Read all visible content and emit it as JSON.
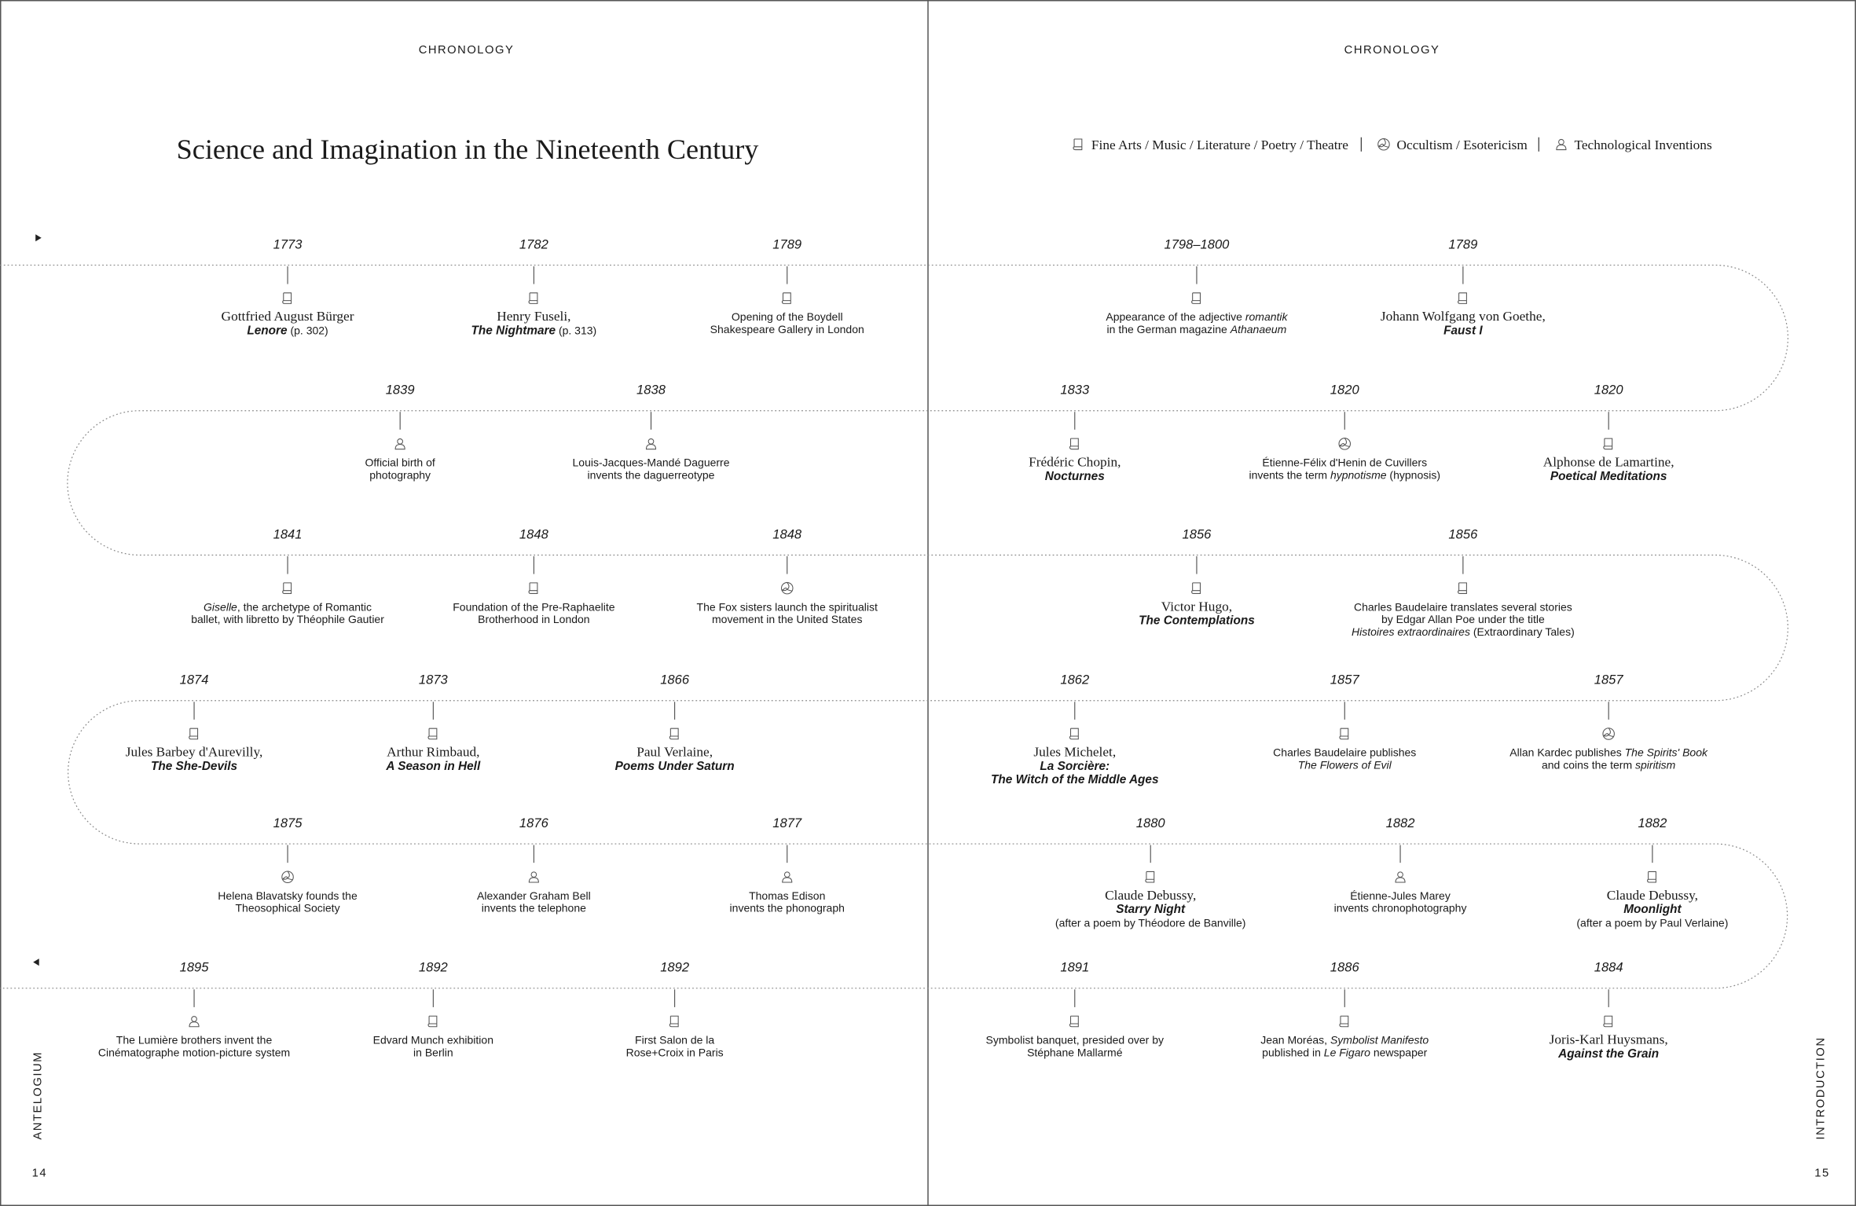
{
  "header": {
    "left": "CHRONOLOGY",
    "right": "CHRONOLOGY",
    "title": "Science and Imagination in the Nineteenth Century"
  },
  "legend": [
    {
      "icon": "arts",
      "label": "Fine Arts / Music / Literature / Poetry / Theatre"
    },
    {
      "icon": "occult",
      "label": "Occultism / Esotericism"
    },
    {
      "icon": "tech",
      "label": "Technological Inventions"
    }
  ],
  "footer": {
    "left_section": "ANTELOGIUM",
    "right_section": "INTRODUCTION",
    "left_page": "14",
    "right_page": "15"
  },
  "events": [
    {
      "year": "1773",
      "icon": "arts",
      "lines": [
        [
          {
            "text": "Gottfried August Bürger",
            "font": "serif"
          }
        ],
        [
          {
            "text": "Lenore",
            "font": "title"
          },
          {
            "text": " (p. 302)",
            "font": "sans"
          }
        ]
      ]
    },
    {
      "year": "1782",
      "icon": "arts",
      "lines": [
        [
          {
            "text": "Henry Fuseli,",
            "font": "serif"
          }
        ],
        [
          {
            "text": "The Nightmare",
            "font": "title"
          },
          {
            "text": " (p. 313)",
            "font": "sans"
          }
        ]
      ]
    },
    {
      "year": "1789",
      "icon": "arts",
      "lines": [
        [
          {
            "text": "Opening of the Boydell",
            "font": "sans"
          }
        ],
        [
          {
            "text": "Shakespeare Gallery in London",
            "font": "sans"
          }
        ]
      ]
    },
    {
      "year": "1798–1800",
      "icon": "arts",
      "lines": [
        [
          {
            "text": "Appearance of the adjective ",
            "font": "sans"
          },
          {
            "text": "romantik",
            "font": "italic"
          }
        ],
        [
          {
            "text": "in the German magazine ",
            "font": "sans"
          },
          {
            "text": "Athanaeum",
            "font": "italic"
          }
        ]
      ]
    },
    {
      "year": "1789",
      "icon": "arts",
      "lines": [
        [
          {
            "text": "Johann Wolfgang von Goethe,",
            "font": "serif"
          }
        ],
        [
          {
            "text": "Faust I",
            "font": "title"
          }
        ]
      ]
    },
    {
      "year": "1839",
      "icon": "tech",
      "lines": [
        [
          {
            "text": "Official birth of",
            "font": "sans"
          }
        ],
        [
          {
            "text": "photography",
            "font": "sans"
          }
        ]
      ]
    },
    {
      "year": "1838",
      "icon": "tech",
      "lines": [
        [
          {
            "text": "Louis-Jacques-Mandé Daguerre",
            "font": "sans"
          }
        ],
        [
          {
            "text": "invents the daguerreotype",
            "font": "sans"
          }
        ]
      ]
    },
    {
      "year": "1833",
      "icon": "arts",
      "lines": [
        [
          {
            "text": "Frédéric Chopin,",
            "font": "serif"
          }
        ],
        [
          {
            "text": "Nocturnes",
            "font": "title"
          }
        ]
      ]
    },
    {
      "year": "1820",
      "icon": "occult",
      "lines": [
        [
          {
            "text": "Étienne-Félix d'Henin de Cuvillers",
            "font": "sans"
          }
        ],
        [
          {
            "text": "invents the term ",
            "font": "sans"
          },
          {
            "text": "hypnotisme",
            "font": "italic"
          },
          {
            "text": " (hypnosis)",
            "font": "sans"
          }
        ]
      ]
    },
    {
      "year": "1820",
      "icon": "arts",
      "lines": [
        [
          {
            "text": "Alphonse de Lamartine,",
            "font": "serif"
          }
        ],
        [
          {
            "text": "Poetical Meditations",
            "font": "title"
          }
        ]
      ]
    },
    {
      "year": "1841",
      "icon": "arts",
      "lines": [
        [
          {
            "text": "Giselle",
            "font": "italic"
          },
          {
            "text": ", the archetype of Romantic",
            "font": "sans"
          }
        ],
        [
          {
            "text": "ballet, with libretto by Théophile Gautier",
            "font": "sans"
          }
        ]
      ]
    },
    {
      "year": "1848",
      "icon": "arts",
      "lines": [
        [
          {
            "text": "Foundation of the Pre-Raphaelite",
            "font": "sans"
          }
        ],
        [
          {
            "text": "Brotherhood in London",
            "font": "sans"
          }
        ]
      ]
    },
    {
      "year": "1848",
      "icon": "occult",
      "lines": [
        [
          {
            "text": "The Fox sisters launch the spiritualist",
            "font": "sans"
          }
        ],
        [
          {
            "text": "movement in the United States",
            "font": "sans"
          }
        ]
      ]
    },
    {
      "year": "1856",
      "icon": "arts",
      "lines": [
        [
          {
            "text": "Victor Hugo,",
            "font": "serif"
          }
        ],
        [
          {
            "text": "The Contemplations",
            "font": "title"
          }
        ]
      ]
    },
    {
      "year": "1856",
      "icon": "arts",
      "lines": [
        [
          {
            "text": "Charles Baudelaire translates several stories",
            "font": "sans"
          }
        ],
        [
          {
            "text": "by Edgar Allan Poe under the title",
            "font": "sans"
          }
        ],
        [
          {
            "text": "Histoires extraordinaires",
            "font": "italic"
          },
          {
            "text": " (Extraordinary Tales)",
            "font": "sans"
          }
        ]
      ]
    },
    {
      "year": "1874",
      "icon": "arts",
      "lines": [
        [
          {
            "text": "Jules Barbey d'Aurevilly,",
            "font": "serif"
          }
        ],
        [
          {
            "text": "The She-Devils",
            "font": "title"
          }
        ]
      ]
    },
    {
      "year": "1873",
      "icon": "arts",
      "lines": [
        [
          {
            "text": "Arthur Rimbaud,",
            "font": "serif"
          }
        ],
        [
          {
            "text": "A Season in Hell",
            "font": "title"
          }
        ]
      ]
    },
    {
      "year": "1866",
      "icon": "arts",
      "lines": [
        [
          {
            "text": "Paul Verlaine,",
            "font": "serif"
          }
        ],
        [
          {
            "text": "Poems Under Saturn",
            "font": "title"
          }
        ]
      ]
    },
    {
      "year": "1862",
      "icon": "arts",
      "lines": [
        [
          {
            "text": "Jules Michelet,",
            "font": "serif"
          }
        ],
        [
          {
            "text": "La Sorcière:",
            "font": "title"
          }
        ],
        [
          {
            "text": "The Witch of the Middle Ages",
            "font": "title"
          }
        ]
      ]
    },
    {
      "year": "1857",
      "icon": "arts",
      "lines": [
        [
          {
            "text": "Charles Baudelaire publishes",
            "font": "sans"
          }
        ],
        [
          {
            "text": "The Flowers of Evil",
            "font": "italic"
          }
        ]
      ]
    },
    {
      "year": "1857",
      "icon": "occult",
      "lines": [
        [
          {
            "text": "Allan Kardec publishes ",
            "font": "sans"
          },
          {
            "text": "The Spirits' Book",
            "font": "italic"
          }
        ],
        [
          {
            "text": "and coins the term ",
            "font": "sans"
          },
          {
            "text": "spiritism",
            "font": "italic"
          }
        ]
      ]
    },
    {
      "year": "1875",
      "icon": "occult",
      "lines": [
        [
          {
            "text": "Helena Blavatsky founds the",
            "font": "sans"
          }
        ],
        [
          {
            "text": "Theosophical Society",
            "font": "sans"
          }
        ]
      ]
    },
    {
      "year": "1876",
      "icon": "tech",
      "lines": [
        [
          {
            "text": "Alexander Graham Bell",
            "font": "sans"
          }
        ],
        [
          {
            "text": "invents the telephone",
            "font": "sans"
          }
        ]
      ]
    },
    {
      "year": "1877",
      "icon": "tech",
      "lines": [
        [
          {
            "text": "Thomas Edison",
            "font": "sans"
          }
        ],
        [
          {
            "text": "invents the phonograph",
            "font": "sans"
          }
        ]
      ]
    },
    {
      "year": "1880",
      "icon": "arts",
      "lines": [
        [
          {
            "text": "Claude Debussy,",
            "font": "serif"
          }
        ],
        [
          {
            "text": "Starry Night",
            "font": "title"
          }
        ],
        [
          {
            "text": "(after a poem by Théodore de Banville)",
            "font": "sans"
          }
        ]
      ]
    },
    {
      "year": "1882",
      "icon": "tech",
      "lines": [
        [
          {
            "text": "Étienne-Jules Marey",
            "font": "sans"
          }
        ],
        [
          {
            "text": "invents chronophotography",
            "font": "sans"
          }
        ]
      ]
    },
    {
      "year": "1882",
      "icon": "arts",
      "lines": [
        [
          {
            "text": "Claude Debussy,",
            "font": "serif"
          }
        ],
        [
          {
            "text": "Moonlight",
            "font": "title"
          }
        ],
        [
          {
            "text": "(after a poem by Paul Verlaine)",
            "font": "sans"
          }
        ]
      ]
    },
    {
      "year": "1895",
      "icon": "tech",
      "lines": [
        [
          {
            "text": "The Lumière brothers invent the",
            "font": "sans"
          }
        ],
        [
          {
            "text": "Cinématographe motion-picture system",
            "font": "sans"
          }
        ]
      ]
    },
    {
      "year": "1892",
      "icon": "arts",
      "lines": [
        [
          {
            "text": "Edvard Munch exhibition",
            "font": "sans"
          }
        ],
        [
          {
            "text": "in Berlin",
            "font": "sans"
          }
        ]
      ]
    },
    {
      "year": "1892",
      "icon": "arts",
      "lines": [
        [
          {
            "text": "First Salon de la",
            "font": "sans"
          }
        ],
        [
          {
            "text": "Rose+Croix in Paris",
            "font": "sans"
          }
        ]
      ]
    },
    {
      "year": "1891",
      "icon": "arts",
      "lines": [
        [
          {
            "text": "Symbolist banquet, presided over by",
            "font": "sans"
          }
        ],
        [
          {
            "text": "Stéphane Mallarmé",
            "font": "sans"
          }
        ]
      ]
    },
    {
      "year": "1886",
      "icon": "arts",
      "lines": [
        [
          {
            "text": "Jean Moréas, ",
            "font": "sans"
          },
          {
            "text": "Symbolist Manifesto",
            "font": "italic"
          }
        ],
        [
          {
            "text": "published in ",
            "font": "sans"
          },
          {
            "text": "Le Figaro",
            "font": "italic"
          },
          {
            "text": " newspaper",
            "font": "sans"
          }
        ]
      ]
    },
    {
      "year": "1884",
      "icon": "arts",
      "lines": [
        [
          {
            "text": "Joris-Karl Huysmans,",
            "font": "serif"
          }
        ],
        [
          {
            "text": "Against the Grain",
            "font": "title"
          }
        ]
      ]
    }
  ]
}
